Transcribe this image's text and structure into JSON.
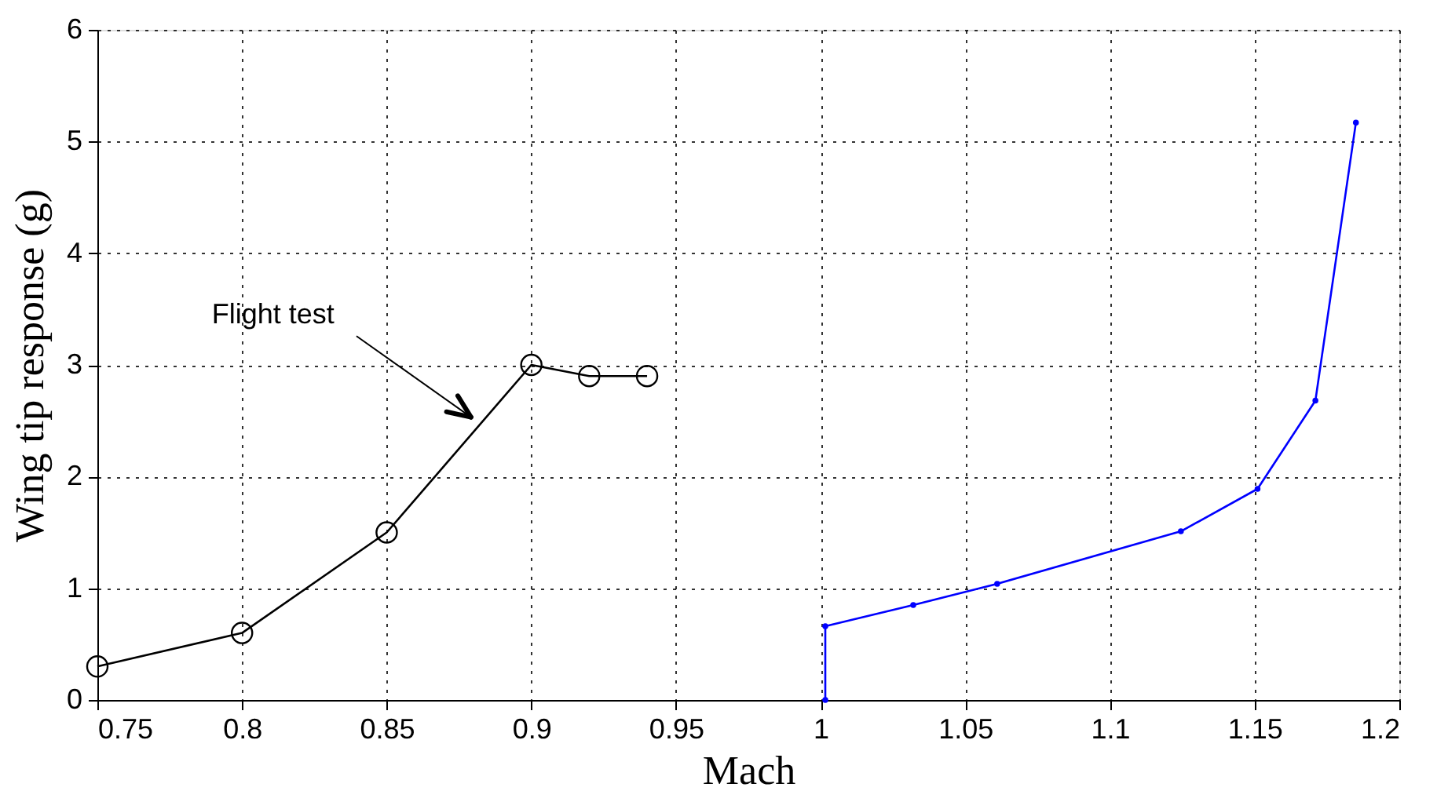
{
  "chart_data": {
    "type": "line",
    "xlabel": "Mach",
    "ylabel": "Wing tip response (g)",
    "xlim": [
      0.75,
      1.2
    ],
    "xticks": [
      0.75,
      0.8,
      0.85,
      0.9,
      0.95,
      1,
      1.05,
      1.1,
      1.15,
      1.2
    ],
    "ylim": [
      0,
      6
    ],
    "yticks": [
      0,
      1,
      2,
      3,
      4,
      5,
      6
    ],
    "grid": true,
    "series": [
      {
        "color": "#000000",
        "marker": "circle",
        "x": [
          0.75,
          0.8,
          0.85,
          0.9,
          0.92,
          0.94
        ],
        "values": [
          0.3,
          0.6,
          1.5,
          3.0,
          2.9,
          2.9
        ]
      },
      {
        "color": "#0000ff",
        "marker": "point",
        "x": [
          1.0016,
          1.0016,
          1.032,
          1.061,
          1.1245,
          1.151,
          1.171,
          1.185
        ],
        "values": [
          0,
          0.66,
          0.85,
          1.04,
          1.51,
          1.89,
          2.68,
          5.17
        ]
      }
    ],
    "annotations": [
      "Flight test"
    ]
  }
}
